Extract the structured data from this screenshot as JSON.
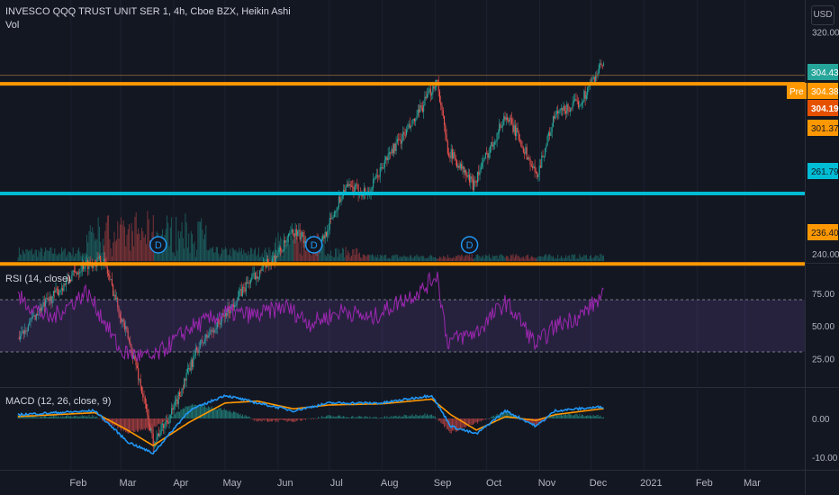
{
  "header": {
    "title": "INVESCO QQQ TRUST UNIT SER 1, 4h, Cboe BZX, Heikin Ashi",
    "volume_label": "Vol",
    "currency": "USD"
  },
  "colors": {
    "background": "#131722",
    "up": "#26a69a",
    "down": "#ef5350",
    "resistance": "#ff9800",
    "support": "#00bcd4",
    "rsi": "#9c27b0",
    "macd": "#2196f3",
    "signal": "#ff9800"
  },
  "price_axis": {
    "ticks": [
      320.0,
      240.0
    ],
    "tick_labels": [
      "320.00",
      "240.00"
    ]
  },
  "price_tags": [
    {
      "text": "304.43",
      "bg": "#26a69a",
      "fg": "#ffffff",
      "value": 304.43
    },
    {
      "text": "304.38",
      "bg": "#ff9800",
      "fg": "#ffffff",
      "value": 304.38,
      "prefix": "Pre"
    },
    {
      "text": "304.19",
      "bg": "#e65100",
      "fg": "#ffffff",
      "value": 304.19
    },
    {
      "text": "301.37",
      "bg": "#ff9800",
      "fg": "#131722",
      "value": 301.37
    },
    {
      "text": "261.79",
      "bg": "#00bcd4",
      "fg": "#131722",
      "value": 261.79
    },
    {
      "text": "236.40",
      "bg": "#ff9800",
      "fg": "#131722",
      "value": 236.4
    }
  ],
  "horizontal_lines": [
    {
      "value": 301.37,
      "color": "#ff9800"
    },
    {
      "value": 261.79,
      "color": "#00bcd4"
    },
    {
      "value": 236.4,
      "color": "#ff9800"
    }
  ],
  "dividend_marker": "D",
  "panes": {
    "rsi": {
      "label": "RSI (14, close)",
      "ticks": [
        "75.00",
        "50.00",
        "25.00"
      ]
    },
    "macd": {
      "label": "MACD (12, 26, close, 9)",
      "ticks": [
        "0.00",
        "-10.00"
      ]
    }
  },
  "chart_data": {
    "type": "candlestick",
    "title": "INVESCO QQQ TRUST UNIT SER 1, 4h, Cboe BZX, Heikin Ashi",
    "x_axis": {
      "labels": [
        "Feb",
        "Mar",
        "Apr",
        "May",
        "Jun",
        "Jul",
        "Aug",
        "Sep",
        "Oct",
        "Nov",
        "Dec",
        "2021",
        "Feb",
        "Mar"
      ]
    },
    "price_path": {
      "dates": [
        "2020-01-01",
        "2020-01-14",
        "2020-02-08",
        "2020-02-20",
        "2020-03-10",
        "2020-03-20",
        "2020-04-01",
        "2020-04-15",
        "2020-05-01",
        "2020-05-15",
        "2020-06-01",
        "2020-06-10",
        "2020-06-25",
        "2020-07-10",
        "2020-07-24",
        "2020-08-05",
        "2020-08-20",
        "2020-09-02",
        "2020-09-08",
        "2020-09-23",
        "2020-10-12",
        "2020-10-20",
        "2020-10-30",
        "2020-11-10",
        "2020-11-25",
        "2020-12-07"
      ],
      "values": [
        210,
        220,
        236,
        238,
        200,
        172,
        184,
        206,
        218,
        230,
        240,
        248,
        242,
        264,
        262,
        276,
        288,
        303,
        278,
        265,
        290,
        282,
        268,
        290,
        295,
        308
      ]
    },
    "rsi": {
      "dates": [
        "2020-01-01",
        "2020-01-20",
        "2020-02-10",
        "2020-02-20",
        "2020-03-01",
        "2020-03-20",
        "2020-04-10",
        "2020-05-01",
        "2020-05-20",
        "2020-06-05",
        "2020-06-20",
        "2020-07-10",
        "2020-07-25",
        "2020-08-10",
        "2020-08-25",
        "2020-09-02",
        "2020-09-08",
        "2020-09-25",
        "2020-10-12",
        "2020-10-20",
        "2020-10-30",
        "2020-11-10",
        "2020-11-25",
        "2020-12-07"
      ],
      "values": [
        72,
        55,
        76,
        55,
        30,
        25,
        48,
        60,
        58,
        65,
        52,
        62,
        55,
        68,
        78,
        90,
        38,
        45,
        68,
        55,
        35,
        50,
        58,
        72
      ]
    },
    "macd": {
      "dates": [
        "2020-01-01",
        "2020-02-15",
        "2020-03-05",
        "2020-03-20",
        "2020-04-10",
        "2020-05-01",
        "2020-05-20",
        "2020-06-10",
        "2020-07-01",
        "2020-08-01",
        "2020-08-30",
        "2020-09-10",
        "2020-09-25",
        "2020-10-12",
        "2020-10-30",
        "2020-11-10",
        "2020-12-07"
      ],
      "macd": [
        1,
        2,
        -6,
        -9,
        2,
        6,
        4,
        2,
        4,
        4,
        6,
        -2,
        -4,
        2,
        -2,
        2,
        3
      ],
      "signal": [
        0.5,
        1.5,
        -3,
        -7,
        -1,
        4,
        4.5,
        2.5,
        3.5,
        3.8,
        5,
        1,
        -3,
        0.5,
        -0.5,
        1,
        2.5
      ]
    }
  }
}
